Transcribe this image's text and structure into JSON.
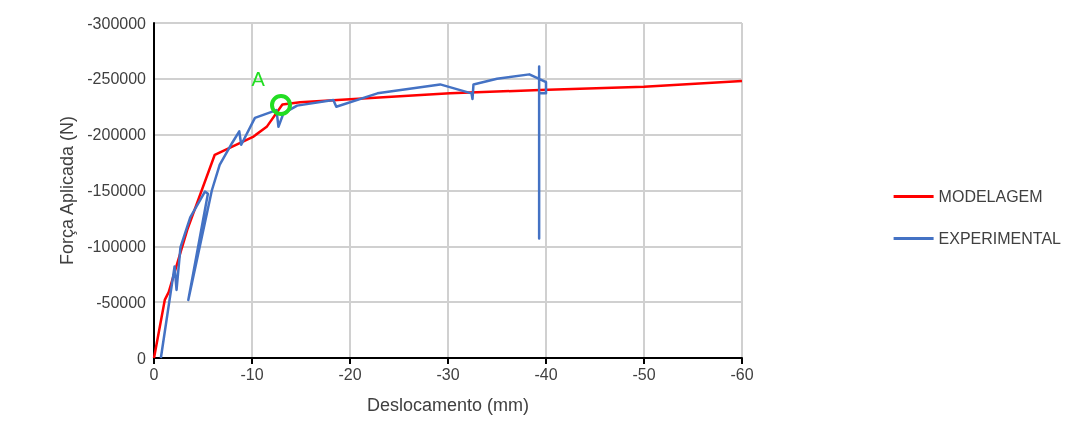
{
  "chart_data": {
    "type": "line",
    "xlabel": "Deslocamento (mm)",
    "ylabel": "Força Aplicada (N)",
    "xlim": [
      0,
      -60
    ],
    "xticks": [
      0,
      -10,
      -20,
      -30,
      -40,
      -50,
      -60
    ],
    "ylim": [
      0,
      -300000
    ],
    "yticks": [
      0,
      -50000,
      -100000,
      -150000,
      -200000,
      -250000,
      -300000
    ],
    "grid": true,
    "legend": "right",
    "marker": "none",
    "line_style": "solid",
    "annotations": [
      {
        "text": "A",
        "x": -13,
        "y": -227000
      }
    ],
    "series": [
      {
        "name": "MODELAGEM",
        "color": "#ff0000",
        "x": [
          0,
          -1.1,
          -1.5,
          -3.4,
          -6.2,
          -10.1,
          -11.5,
          -13.1,
          -14.9,
          -30.2,
          -39.4,
          -50,
          -60
        ],
        "values": [
          0,
          -52000,
          -59000,
          -115000,
          -182000,
          -198000,
          -207000,
          -227000,
          -229000,
          -237000,
          -240000,
          -243000,
          -248000
        ]
      },
      {
        "name": "EXPERIMENTAL",
        "color": "#4472c4",
        "x": [
          -0.7,
          -2.1,
          -2.3,
          -2.7,
          -3.7,
          -5.2,
          -5.5,
          -3.5,
          -5.9,
          -6.7,
          -8,
          -8.7,
          -8.9,
          -10.3,
          -12.5,
          -12.7,
          -13.2,
          -14.6,
          -18.3,
          -18.6,
          -22.8,
          -29.2,
          -32.4,
          -32.5,
          -32.6,
          -35,
          -38.3,
          -39.3,
          -39.3,
          -39.3,
          -39.3,
          -40,
          -40,
          -39.4
        ],
        "values": [
          0,
          -82000,
          -61000,
          -99000,
          -126000,
          -149000,
          -147000,
          -52000,
          -150000,
          -173000,
          -193000,
          -203000,
          -191000,
          -215000,
          -222000,
          -207000,
          -219000,
          -226000,
          -231000,
          -225000,
          -237000,
          -245000,
          -237000,
          -232000,
          -245000,
          -250000,
          -254000,
          -250000,
          -261000,
          -107000,
          -250000,
          -247000,
          -237000,
          -237000
        ]
      }
    ]
  }
}
